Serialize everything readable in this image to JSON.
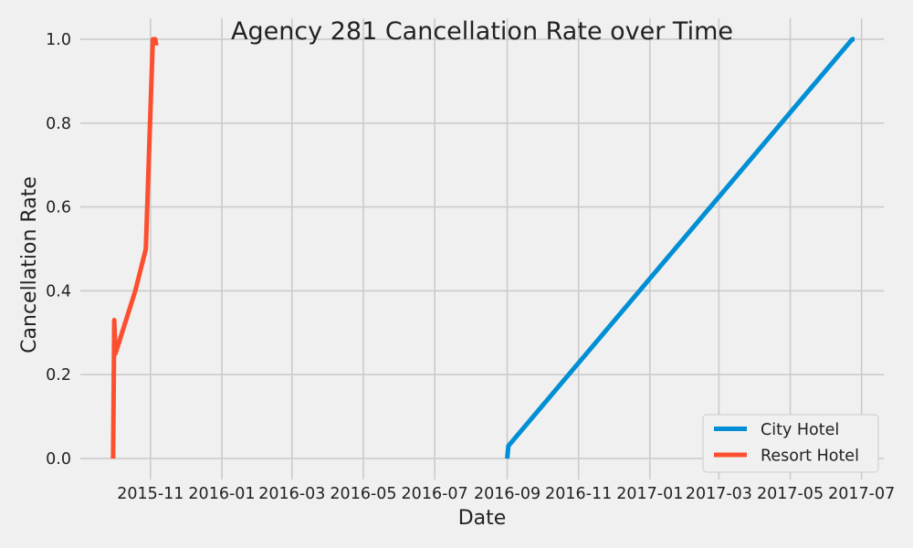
{
  "chart_data": {
    "type": "line",
    "title": "Agency 281 Cancellation Rate over Time",
    "xlabel": "Date",
    "ylabel": "Cancellation Rate",
    "xlim": [
      "2015-09-02",
      "2017-07-20"
    ],
    "ylim": [
      -0.05,
      1.05
    ],
    "x_ticks": [
      "2015-11",
      "2016-01",
      "2016-03",
      "2016-05",
      "2016-07",
      "2016-09",
      "2016-11",
      "2017-01",
      "2017-03",
      "2017-05",
      "2017-07"
    ],
    "y_ticks": [
      "0.0",
      "0.2",
      "0.4",
      "0.6",
      "0.8",
      "1.0"
    ],
    "grid": true,
    "legend_position": "bottom-right",
    "series": [
      {
        "name": "City Hotel",
        "color": "#008fd5",
        "points": [
          {
            "x": "2016-09-01",
            "y": 0.0
          },
          {
            "x": "2016-09-02",
            "y": 0.03
          },
          {
            "x": "2017-06-23",
            "y": 1.0
          },
          {
            "x": "2017-06-25",
            "y": 1.0
          }
        ]
      },
      {
        "name": "Resort Hotel",
        "color": "#fc4f30",
        "points": [
          {
            "x": "2015-09-30",
            "y": 0.0
          },
          {
            "x": "2015-10-01",
            "y": 0.33
          },
          {
            "x": "2015-10-01",
            "y": 0.33
          },
          {
            "x": "2015-10-02",
            "y": 0.25
          },
          {
            "x": "2015-10-19",
            "y": 0.4
          },
          {
            "x": "2015-10-28",
            "y": 0.5
          },
          {
            "x": "2015-11-03",
            "y": 1.0
          },
          {
            "x": "2015-11-05",
            "y": 1.0
          },
          {
            "x": "2015-11-06",
            "y": 0.985
          }
        ]
      }
    ]
  }
}
